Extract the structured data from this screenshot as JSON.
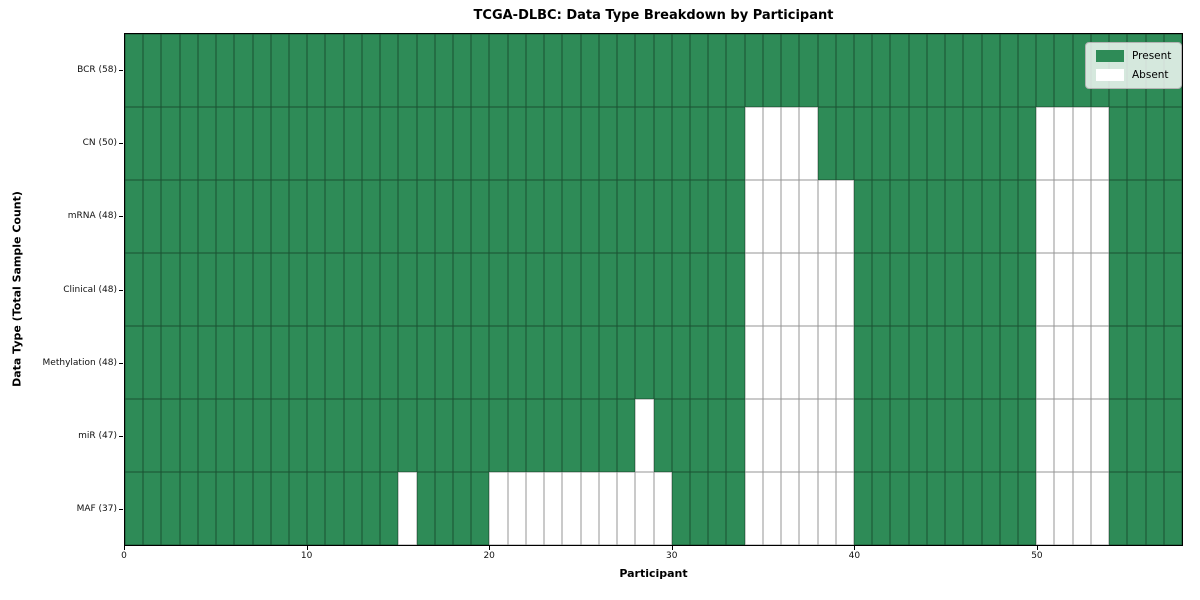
{
  "chart_data": {
    "type": "heatmap",
    "title": "TCGA-DLBC: Data Type Breakdown by Participant",
    "xlabel": "Participant",
    "ylabel": "Data Type (Total Sample Count)",
    "x_ticks": [
      0,
      10,
      20,
      30,
      40,
      50
    ],
    "x_range": [
      0,
      58
    ],
    "n_participants": 58,
    "grid": true,
    "legend_position": "upper right",
    "legend": [
      {
        "label": "Present",
        "color": "#2e8b57"
      },
      {
        "label": "Absent",
        "color": "#ffffff"
      }
    ],
    "rows": [
      {
        "label": "BCR (58)",
        "total": 58,
        "absent_participants": []
      },
      {
        "label": "CN (50)",
        "total": 50,
        "absent_participants": [
          34,
          35,
          36,
          37,
          50,
          51,
          52,
          53
        ]
      },
      {
        "label": "mRNA (48)",
        "total": 48,
        "absent_participants": [
          34,
          35,
          36,
          37,
          38,
          39,
          50,
          51,
          52,
          53
        ]
      },
      {
        "label": "Clinical (48)",
        "total": 48,
        "absent_participants": [
          34,
          35,
          36,
          37,
          38,
          39,
          50,
          51,
          52,
          53
        ]
      },
      {
        "label": "Methylation (48)",
        "total": 48,
        "absent_participants": [
          34,
          35,
          36,
          37,
          38,
          39,
          50,
          51,
          52,
          53
        ]
      },
      {
        "label": "miR (47)",
        "total": 47,
        "absent_participants": [
          28,
          34,
          35,
          36,
          37,
          38,
          39,
          50,
          51,
          52,
          53
        ]
      },
      {
        "label": "MAF (37)",
        "total": 37,
        "absent_participants": [
          15,
          20,
          21,
          22,
          23,
          24,
          25,
          26,
          27,
          28,
          29,
          34,
          35,
          36,
          37,
          38,
          39,
          50,
          51,
          52,
          53
        ]
      }
    ],
    "colors": {
      "present": "#2e8b57",
      "absent": "#ffffff",
      "cell_edge": "rgba(0,0,0,0.42)"
    }
  }
}
